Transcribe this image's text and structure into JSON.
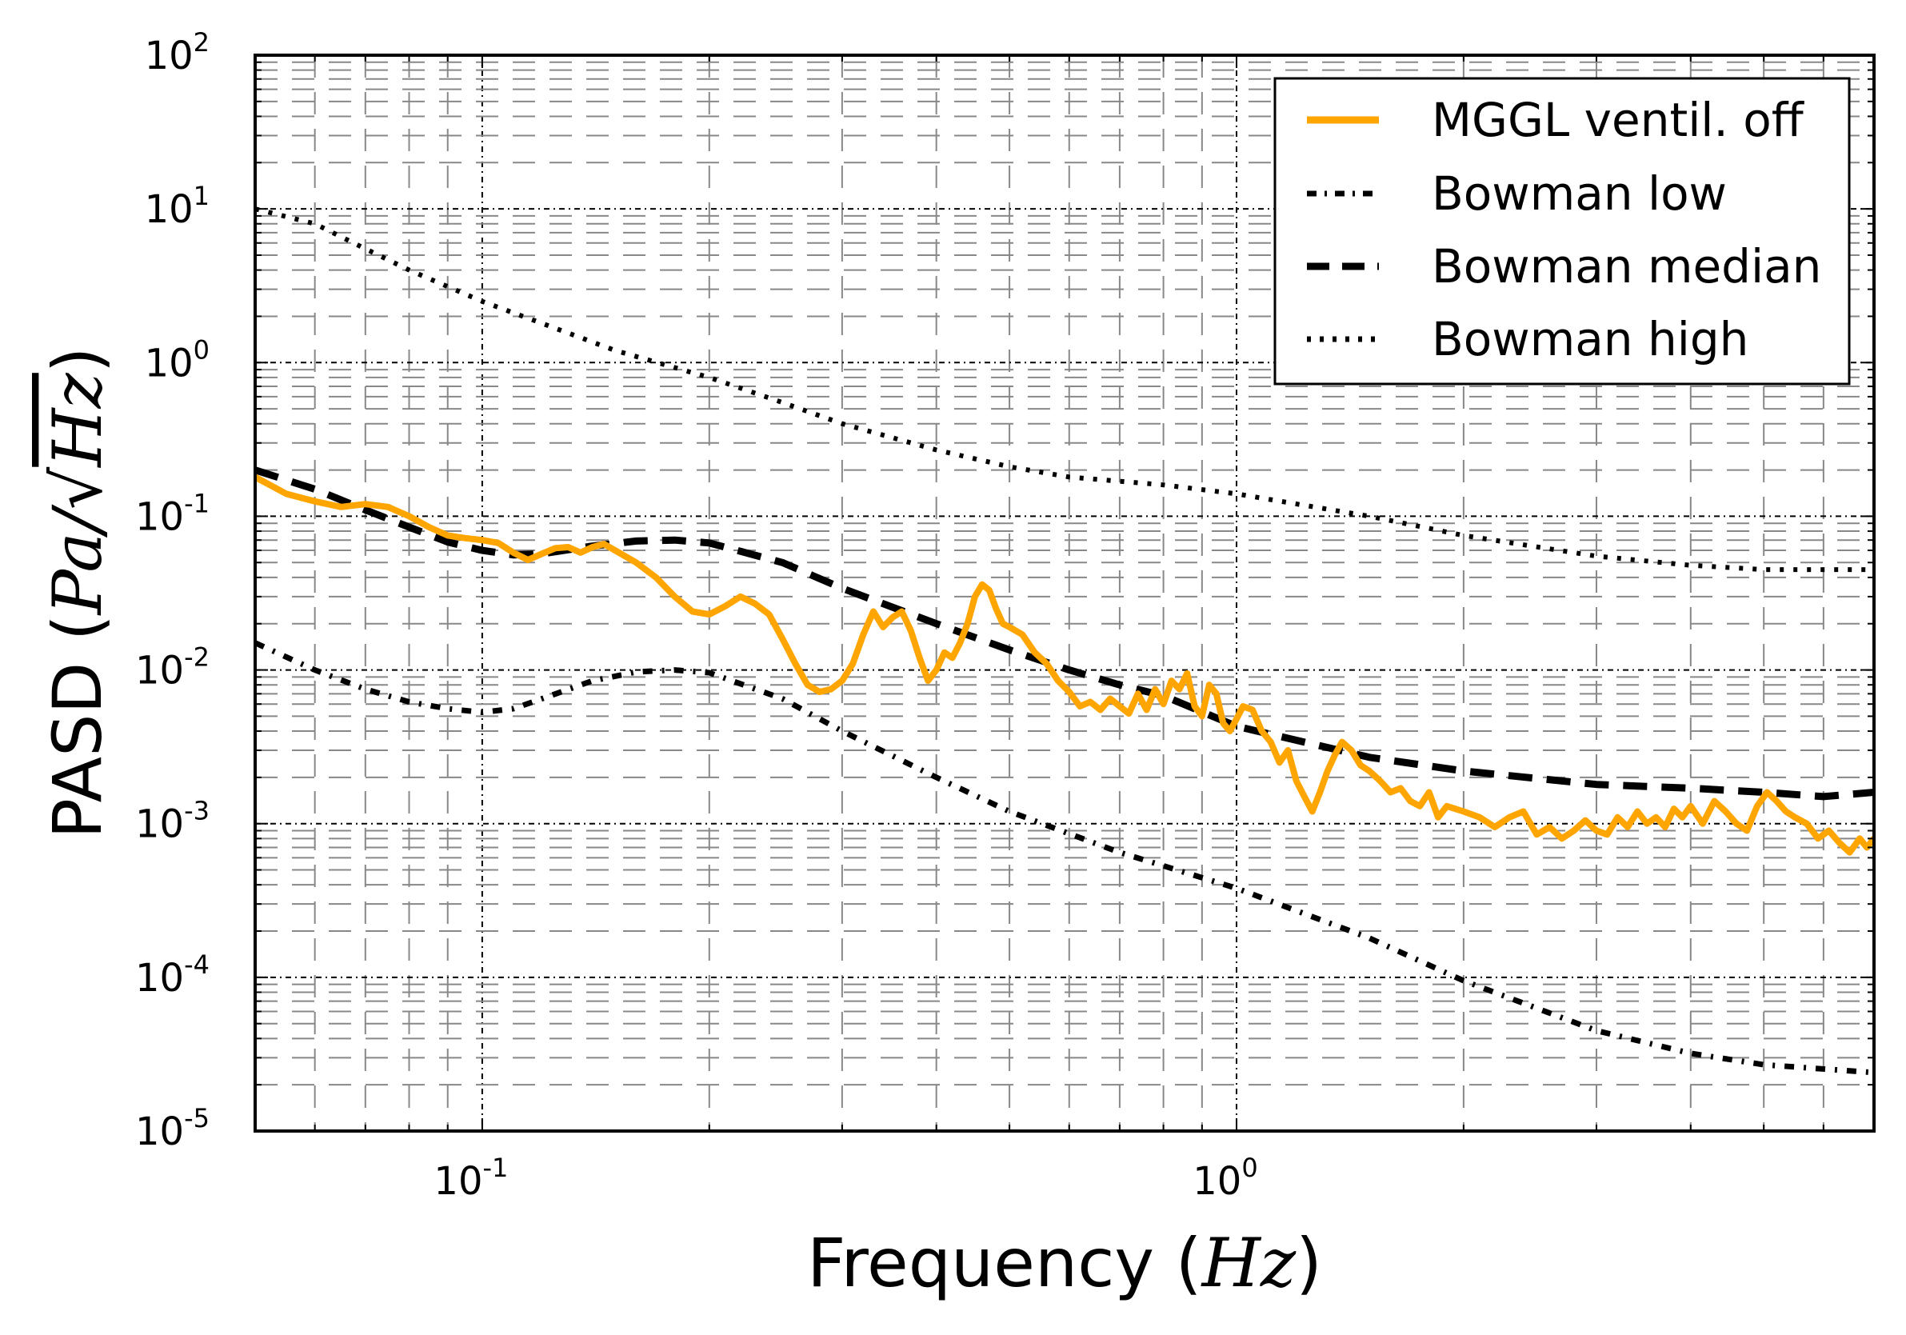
{
  "chart_data": {
    "type": "line",
    "scale": {
      "x": "log",
      "y": "log"
    },
    "xlim": [
      0.05,
      7.0
    ],
    "ylim": [
      1e-05,
      100
    ],
    "xlabel": {
      "prefix": "Frequency (",
      "math": "Hz",
      "suffix": ")"
    },
    "ylabel": {
      "prefix": "PASD (",
      "math_num": "Pa/",
      "math_root": "Hz",
      "suffix": ")"
    },
    "x_ticks": [
      {
        "value": 0.1,
        "base": "10",
        "exp": "-1"
      },
      {
        "value": 1.0,
        "base": "10",
        "exp": "0"
      }
    ],
    "y_ticks": [
      {
        "value": 100,
        "base": "10",
        "exp": "2"
      },
      {
        "value": 10,
        "base": "10",
        "exp": "1"
      },
      {
        "value": 1,
        "base": "10",
        "exp": "0"
      },
      {
        "value": 0.1,
        "base": "10",
        "exp": "-1"
      },
      {
        "value": 0.01,
        "base": "10",
        "exp": "-2"
      },
      {
        "value": 0.001,
        "base": "10",
        "exp": "-3"
      },
      {
        "value": 0.0001,
        "base": "10",
        "exp": "-4"
      },
      {
        "value": 1e-05,
        "base": "10",
        "exp": "-5"
      }
    ],
    "grid": true,
    "legend_position": "top-right",
    "series": [
      {
        "name": "MGGL ventil. off",
        "style": "solid",
        "color": "#FFA500",
        "points": [
          [
            0.05,
            0.18
          ],
          [
            0.055,
            0.14
          ],
          [
            0.06,
            0.125
          ],
          [
            0.065,
            0.115
          ],
          [
            0.07,
            0.12
          ],
          [
            0.075,
            0.115
          ],
          [
            0.08,
            0.1
          ],
          [
            0.085,
            0.085
          ],
          [
            0.09,
            0.075
          ],
          [
            0.095,
            0.072
          ],
          [
            0.1,
            0.07
          ],
          [
            0.105,
            0.067
          ],
          [
            0.11,
            0.058
          ],
          [
            0.115,
            0.052
          ],
          [
            0.12,
            0.057
          ],
          [
            0.125,
            0.062
          ],
          [
            0.13,
            0.063
          ],
          [
            0.135,
            0.058
          ],
          [
            0.14,
            0.063
          ],
          [
            0.145,
            0.066
          ],
          [
            0.15,
            0.06
          ],
          [
            0.16,
            0.05
          ],
          [
            0.17,
            0.04
          ],
          [
            0.18,
            0.03
          ],
          [
            0.19,
            0.024
          ],
          [
            0.2,
            0.023
          ],
          [
            0.21,
            0.026
          ],
          [
            0.22,
            0.03
          ],
          [
            0.23,
            0.027
          ],
          [
            0.24,
            0.023
          ],
          [
            0.25,
            0.016
          ],
          [
            0.26,
            0.011
          ],
          [
            0.27,
            0.008
          ],
          [
            0.28,
            0.0072
          ],
          [
            0.29,
            0.0075
          ],
          [
            0.3,
            0.0085
          ],
          [
            0.31,
            0.011
          ],
          [
            0.32,
            0.017
          ],
          [
            0.33,
            0.024
          ],
          [
            0.34,
            0.019
          ],
          [
            0.35,
            0.022
          ],
          [
            0.36,
            0.024
          ],
          [
            0.37,
            0.018
          ],
          [
            0.38,
            0.012
          ],
          [
            0.39,
            0.0085
          ],
          [
            0.4,
            0.01
          ],
          [
            0.41,
            0.013
          ],
          [
            0.42,
            0.012
          ],
          [
            0.43,
            0.015
          ],
          [
            0.44,
            0.02
          ],
          [
            0.45,
            0.03
          ],
          [
            0.46,
            0.036
          ],
          [
            0.47,
            0.033
          ],
          [
            0.48,
            0.025
          ],
          [
            0.49,
            0.02
          ],
          [
            0.5,
            0.019
          ],
          [
            0.52,
            0.017
          ],
          [
            0.54,
            0.013
          ],
          [
            0.56,
            0.011
          ],
          [
            0.58,
            0.0085
          ],
          [
            0.6,
            0.0072
          ],
          [
            0.62,
            0.0058
          ],
          [
            0.64,
            0.0062
          ],
          [
            0.66,
            0.0055
          ],
          [
            0.68,
            0.0065
          ],
          [
            0.7,
            0.0058
          ],
          [
            0.72,
            0.0052
          ],
          [
            0.74,
            0.007
          ],
          [
            0.76,
            0.0055
          ],
          [
            0.78,
            0.0075
          ],
          [
            0.8,
            0.006
          ],
          [
            0.82,
            0.0085
          ],
          [
            0.84,
            0.0075
          ],
          [
            0.86,
            0.0095
          ],
          [
            0.88,
            0.0058
          ],
          [
            0.9,
            0.005
          ],
          [
            0.92,
            0.008
          ],
          [
            0.94,
            0.007
          ],
          [
            0.96,
            0.0045
          ],
          [
            0.98,
            0.004
          ],
          [
            1.0,
            0.0048
          ],
          [
            1.02,
            0.0058
          ],
          [
            1.05,
            0.0055
          ],
          [
            1.08,
            0.004
          ],
          [
            1.11,
            0.0034
          ],
          [
            1.14,
            0.0025
          ],
          [
            1.17,
            0.003
          ],
          [
            1.2,
            0.0019
          ],
          [
            1.23,
            0.0015
          ],
          [
            1.26,
            0.0012
          ],
          [
            1.29,
            0.0016
          ],
          [
            1.32,
            0.0022
          ],
          [
            1.35,
            0.0028
          ],
          [
            1.38,
            0.0034
          ],
          [
            1.42,
            0.003
          ],
          [
            1.46,
            0.0024
          ],
          [
            1.5,
            0.0022
          ],
          [
            1.55,
            0.0019
          ],
          [
            1.6,
            0.0016
          ],
          [
            1.65,
            0.0017
          ],
          [
            1.7,
            0.0014
          ],
          [
            1.75,
            0.0013
          ],
          [
            1.8,
            0.0016
          ],
          [
            1.85,
            0.0011
          ],
          [
            1.9,
            0.0013
          ],
          [
            2.0,
            0.0012
          ],
          [
            2.1,
            0.0011
          ],
          [
            2.2,
            0.00095
          ],
          [
            2.3,
            0.0011
          ],
          [
            2.4,
            0.0012
          ],
          [
            2.5,
            0.00085
          ],
          [
            2.6,
            0.00095
          ],
          [
            2.7,
            0.0008
          ],
          [
            2.8,
            0.0009
          ],
          [
            2.9,
            0.00105
          ],
          [
            3.0,
            0.0009
          ],
          [
            3.1,
            0.00085
          ],
          [
            3.2,
            0.0011
          ],
          [
            3.3,
            0.00095
          ],
          [
            3.4,
            0.0012
          ],
          [
            3.5,
            0.001
          ],
          [
            3.6,
            0.0011
          ],
          [
            3.7,
            0.00095
          ],
          [
            3.8,
            0.00125
          ],
          [
            3.9,
            0.0011
          ],
          [
            4.0,
            0.0013
          ],
          [
            4.15,
            0.001
          ],
          [
            4.3,
            0.0014
          ],
          [
            4.45,
            0.0012
          ],
          [
            4.6,
            0.001
          ],
          [
            4.75,
            0.0009
          ],
          [
            4.9,
            0.0013
          ],
          [
            5.05,
            0.0016
          ],
          [
            5.2,
            0.0014
          ],
          [
            5.35,
            0.0012
          ],
          [
            5.5,
            0.0011
          ],
          [
            5.7,
            0.001
          ],
          [
            5.9,
            0.0008
          ],
          [
            6.1,
            0.0009
          ],
          [
            6.3,
            0.00075
          ],
          [
            6.5,
            0.00065
          ],
          [
            6.7,
            0.0008
          ],
          [
            6.85,
            0.0007
          ],
          [
            7.0,
            0.0008
          ]
        ]
      },
      {
        "name": "Bowman low",
        "style": "dashdot",
        "color": "#000000",
        "points": [
          [
            0.05,
            0.015
          ],
          [
            0.06,
            0.01
          ],
          [
            0.07,
            0.0075
          ],
          [
            0.08,
            0.0062
          ],
          [
            0.09,
            0.0056
          ],
          [
            0.1,
            0.0053
          ],
          [
            0.11,
            0.0056
          ],
          [
            0.12,
            0.0065
          ],
          [
            0.14,
            0.0085
          ],
          [
            0.16,
            0.0097
          ],
          [
            0.18,
            0.01
          ],
          [
            0.2,
            0.0096
          ],
          [
            0.25,
            0.0065
          ],
          [
            0.3,
            0.004
          ],
          [
            0.4,
            0.002
          ],
          [
            0.5,
            0.0012
          ],
          [
            0.7,
            0.00065
          ],
          [
            1.0,
            0.00038
          ],
          [
            1.5,
            0.00018
          ],
          [
            2.0,
            9.5e-05
          ],
          [
            3.0,
            4.5e-05
          ],
          [
            4.0,
            3.2e-05
          ],
          [
            5.0,
            2.7e-05
          ],
          [
            7.0,
            2.4e-05
          ]
        ]
      },
      {
        "name": "Bowman median",
        "style": "dashed",
        "color": "#000000",
        "points": [
          [
            0.05,
            0.2
          ],
          [
            0.06,
            0.15
          ],
          [
            0.07,
            0.11
          ],
          [
            0.08,
            0.085
          ],
          [
            0.09,
            0.068
          ],
          [
            0.1,
            0.06
          ],
          [
            0.11,
            0.056
          ],
          [
            0.12,
            0.057
          ],
          [
            0.14,
            0.064
          ],
          [
            0.16,
            0.069
          ],
          [
            0.18,
            0.07
          ],
          [
            0.2,
            0.067
          ],
          [
            0.25,
            0.05
          ],
          [
            0.3,
            0.034
          ],
          [
            0.4,
            0.02
          ],
          [
            0.5,
            0.0135
          ],
          [
            0.6,
            0.01
          ],
          [
            0.7,
            0.008
          ],
          [
            0.8,
            0.0068
          ],
          [
            1.0,
            0.0043
          ],
          [
            1.5,
            0.0027
          ],
          [
            2.0,
            0.0022
          ],
          [
            3.0,
            0.0018
          ],
          [
            4.0,
            0.0017
          ],
          [
            5.0,
            0.0016
          ],
          [
            6.0,
            0.0015
          ],
          [
            7.0,
            0.0016
          ]
        ]
      },
      {
        "name": "Bowman high",
        "style": "dotted",
        "color": "#000000",
        "points": [
          [
            0.05,
            10.0
          ],
          [
            0.06,
            8.0
          ],
          [
            0.07,
            5.5
          ],
          [
            0.08,
            4.0
          ],
          [
            0.1,
            2.5
          ],
          [
            0.12,
            1.8
          ],
          [
            0.15,
            1.2
          ],
          [
            0.2,
            0.8
          ],
          [
            0.25,
            0.55
          ],
          [
            0.3,
            0.4
          ],
          [
            0.4,
            0.27
          ],
          [
            0.5,
            0.21
          ],
          [
            0.6,
            0.18
          ],
          [
            0.8,
            0.16
          ],
          [
            1.0,
            0.14
          ],
          [
            1.5,
            0.1
          ],
          [
            2.0,
            0.075
          ],
          [
            3.0,
            0.055
          ],
          [
            4.0,
            0.048
          ],
          [
            5.0,
            0.045
          ],
          [
            7.0,
            0.045
          ]
        ]
      }
    ]
  }
}
